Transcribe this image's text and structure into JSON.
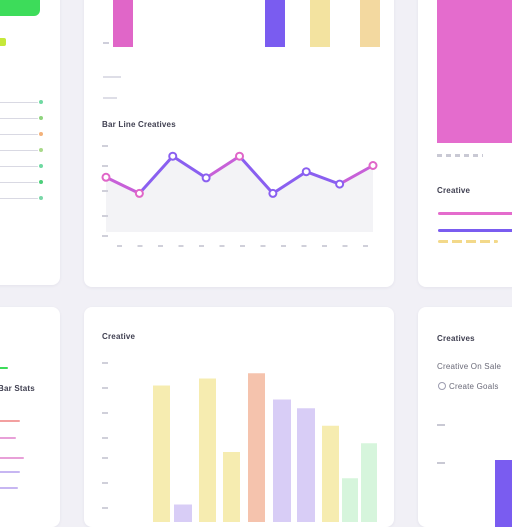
{
  "colors": {
    "background": "#f1f0f6",
    "green": "#3ddc5a",
    "lime": "#c5e83a",
    "purple": "#7a5cf0",
    "pink": "#e05bc0",
    "yellow": "#f5e8a0",
    "peach": "#f5c9a8",
    "lavender": "#d8cdf6",
    "mint": "#d6f5dc"
  },
  "cards": {
    "top_left": {
      "legend_colors": [
        "#6fd9a2",
        "#8fd47e",
        "#f3b27a",
        "#a9d98a",
        "#6fd9a2",
        "#4ccf7a",
        "#7ad7a8"
      ]
    },
    "top_middle": {
      "title": "Bar Line Creatives",
      "top_bar_colors": [
        "#e066c8",
        "#7a5cf0",
        "#f3e3a0",
        "#f3d9a0"
      ],
      "line_chart": {
        "type": "line",
        "color": "#8a5ff0",
        "accent": "#e066c8",
        "values": [
          56,
          30,
          90,
          55,
          90,
          30,
          65,
          45,
          75
        ],
        "ylim": [
          0,
          100
        ]
      }
    },
    "top_right": {
      "title": "Creative",
      "bar_color": "#e46ccd",
      "legend_lines": [
        "#e46ccd",
        "#7a5cf0"
      ]
    },
    "bottom_left": {
      "title": "Bar Stats",
      "accent": "#3ddc5a"
    },
    "bottom_middle": {
      "title": "Creative",
      "bar_chart": {
        "type": "bar",
        "values": [
          78,
          10,
          82,
          40,
          85,
          70,
          65,
          55,
          25,
          45
        ],
        "colors": [
          "#f6ecb0",
          "#d8cdf6",
          "#f6ecb0",
          "#f6ecb0",
          "#f5c3ad",
          "#d8cdf6",
          "#d8cdf6",
          "#f6ecb0",
          "#d6f5dc",
          "#d6f5dc"
        ]
      }
    },
    "bottom_right": {
      "title": "Creatives",
      "subtitle": "Creative On Sale",
      "row_label": "Create Goals",
      "bar_color": "#7a5cf0"
    }
  }
}
